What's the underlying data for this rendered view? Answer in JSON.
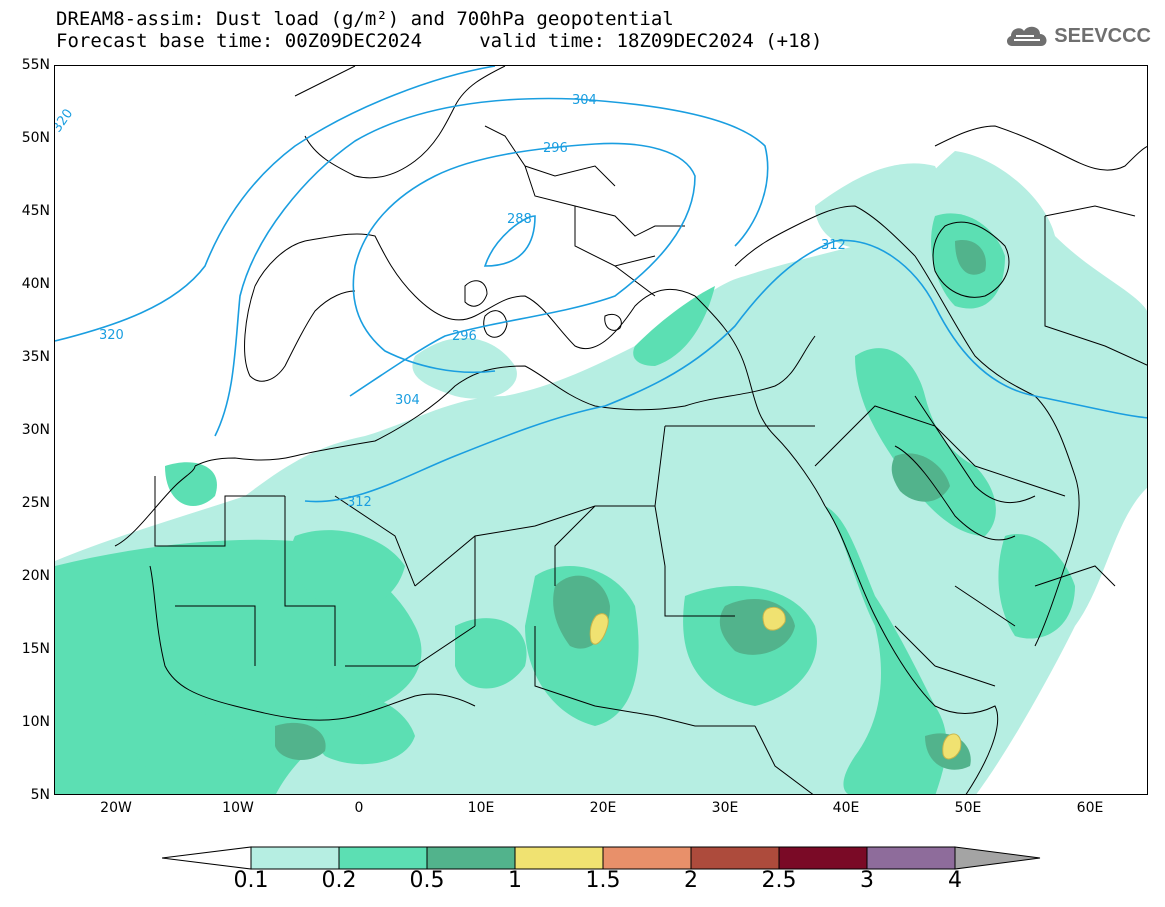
{
  "header": {
    "line1": "DREAM8-assim: Dust load (g/m²) and 700hPa geopotential",
    "line2": "Forecast base time: 00Z09DEC2024     valid time: 18Z09DEC2024 (+18)"
  },
  "logo": {
    "text": "SEEVCCC",
    "icon": "cloud-icon",
    "color": "#6f6f6f"
  },
  "map": {
    "lat_labels": [
      "55N",
      "50N",
      "45N",
      "40N",
      "35N",
      "30N",
      "25N",
      "20N",
      "15N",
      "10N",
      "5N"
    ],
    "lon_labels": [
      "20W",
      "10W",
      "0",
      "10E",
      "20E",
      "30E",
      "40E",
      "50E",
      "60E"
    ],
    "contour_color": "#1a9ee0",
    "contour_labels": [
      "320",
      "304",
      "296",
      "288",
      "312",
      "320",
      "296",
      "304",
      "312"
    ]
  },
  "colorbar": {
    "labels": [
      "0.1",
      "0.2",
      "0.5",
      "1",
      "1.5",
      "2",
      "2.5",
      "3",
      "4"
    ],
    "colors": [
      "#ffffff",
      "#b6eee2",
      "#5cdfb3",
      "#52b38c",
      "#f0e271",
      "#e8906a",
      "#ad4b3c",
      "#7a0a26",
      "#8e6c9b",
      "#a4a4a4"
    ]
  }
}
